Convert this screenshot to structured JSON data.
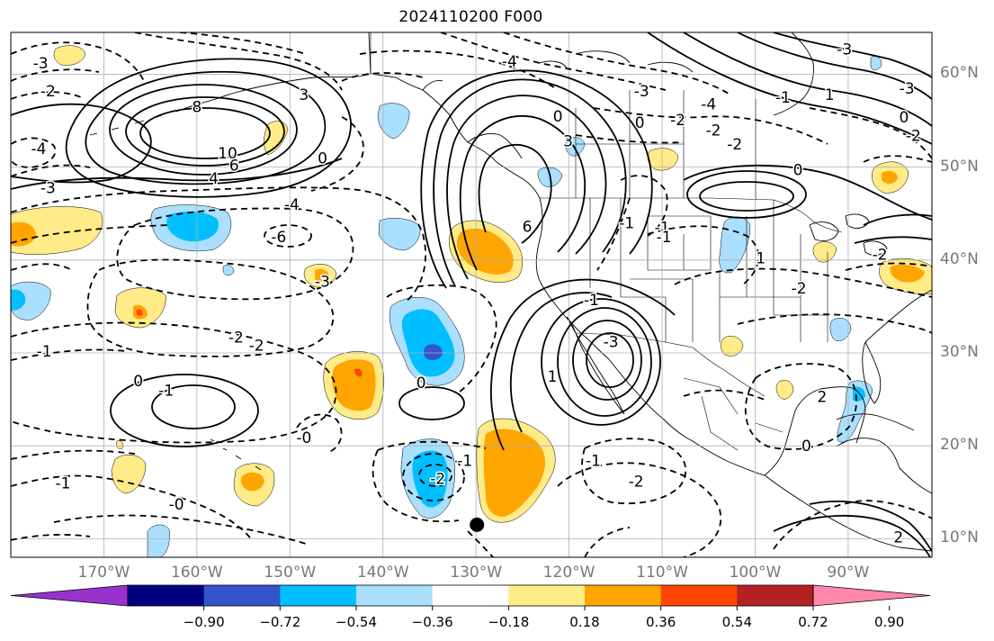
{
  "title": "2024110200 F000",
  "colors": {
    "background": "#ffffff",
    "grid": "#b0b0b0",
    "contour": "#000000",
    "axis_label": "#777777",
    "land_outline": "#000000"
  },
  "colorbar": {
    "ticks": [
      "−0.90",
      "−0.72",
      "−0.54",
      "−0.36",
      "−0.18",
      "0.18",
      "0.36",
      "0.54",
      "0.72",
      "0.90"
    ],
    "tick_values": [
      -0.9,
      -0.72,
      -0.54,
      -0.36,
      -0.18,
      0.18,
      0.36,
      0.54,
      0.72,
      0.9
    ],
    "bin_colors": [
      "#9932cc",
      "#000080",
      "#3355cc",
      "#00bfff",
      "#aadfff",
      "#ffffff",
      "#ffeb88",
      "#ffa500",
      "#ff4500",
      "#b22222",
      "#ff88aa"
    ],
    "extend": "both"
  },
  "axes": {
    "lat_labels": [
      "60°N",
      "50°N",
      "40°N",
      "30°N",
      "20°N",
      "10°N"
    ],
    "lat_values": [
      60,
      50,
      40,
      30,
      20,
      10
    ],
    "lon_labels": [
      "170°W",
      "160°W",
      "150°W",
      "140°W",
      "130°W",
      "120°W",
      "110°W",
      "100°W",
      "90°W"
    ],
    "lon_values": [
      -170,
      -160,
      -150,
      -140,
      -130,
      -120,
      -110,
      -100,
      -90
    ],
    "lon_range": [
      -180,
      -81
    ],
    "lat_range": [
      8,
      64.5
    ]
  },
  "map_data": {
    "projection": "equirectangular",
    "grid": true,
    "contour_labels": [
      {
        "text": "-3",
        "lon": -176.8,
        "lat": 61.2
      },
      {
        "text": "-2",
        "lon": -176,
        "lat": 58.2
      },
      {
        "text": "-4",
        "lon": -177,
        "lat": 52
      },
      {
        "text": "-3",
        "lon": -176,
        "lat": 47.8
      },
      {
        "text": "8",
        "lon": -160,
        "lat": 56.5
      },
      {
        "text": "10",
        "lon": -156.7,
        "lat": 51.5
      },
      {
        "text": "4",
        "lon": -158.2,
        "lat": 48.8
      },
      {
        "text": "6",
        "lon": -156,
        "lat": 50.2
      },
      {
        "text": "3",
        "lon": -148.5,
        "lat": 57.8
      },
      {
        "text": "0",
        "lon": -146.5,
        "lat": 51
      },
      {
        "text": "-4",
        "lon": -149.8,
        "lat": 46
      },
      {
        "text": "-6",
        "lon": -151.2,
        "lat": 42.5
      },
      {
        "text": "-3",
        "lon": -146.5,
        "lat": 37.7
      },
      {
        "text": "-2",
        "lon": -155.8,
        "lat": 31.7
      },
      {
        "text": "-2",
        "lon": -153.6,
        "lat": 30.8
      },
      {
        "text": "-1",
        "lon": -176.4,
        "lat": 30.2
      },
      {
        "text": "0",
        "lon": -166.3,
        "lat": 27
      },
      {
        "text": "-1",
        "lon": -163.3,
        "lat": 26
      },
      {
        "text": "0",
        "lon": -135.9,
        "lat": 26.8
      },
      {
        "text": "-0",
        "lon": -148.5,
        "lat": 20.9
      },
      {
        "text": "-1",
        "lon": -174.4,
        "lat": 16
      },
      {
        "text": "-0",
        "lon": -162.2,
        "lat": 13.7
      },
      {
        "text": "-1",
        "lon": -131.2,
        "lat": 18.4
      },
      {
        "text": "-2",
        "lon": -134.1,
        "lat": 16.5
      },
      {
        "text": "-1",
        "lon": -117.4,
        "lat": 18.4
      },
      {
        "text": "-2",
        "lon": -112.8,
        "lat": 16.2
      },
      {
        "text": "-4",
        "lon": -126.4,
        "lat": 61.4
      },
      {
        "text": "0",
        "lon": -121.2,
        "lat": 55.5
      },
      {
        "text": "6",
        "lon": -124.5,
        "lat": 43.6
      },
      {
        "text": "3",
        "lon": -120.1,
        "lat": 52.8
      },
      {
        "text": "-3",
        "lon": -112.2,
        "lat": 58.2
      },
      {
        "text": "0",
        "lon": -112.4,
        "lat": 54.8
      },
      {
        "text": "-2",
        "lon": -108.3,
        "lat": 55.1
      },
      {
        "text": "-1",
        "lon": -113.8,
        "lat": 44
      },
      {
        "text": "-1",
        "lon": -110,
        "lat": 43.5
      },
      {
        "text": "-1",
        "lon": -109.8,
        "lat": 42.5
      },
      {
        "text": "1",
        "lon": -99.4,
        "lat": 40.2
      },
      {
        "text": "-2",
        "lon": -95.3,
        "lat": 37
      },
      {
        "text": "1",
        "lon": -121.8,
        "lat": 27.5
      },
      {
        "text": "-1",
        "lon": -117.6,
        "lat": 35.7
      },
      {
        "text": "-3",
        "lon": -115.5,
        "lat": 31.2
      },
      {
        "text": "-4",
        "lon": -105,
        "lat": 56.8
      },
      {
        "text": "-2",
        "lon": -104.5,
        "lat": 54
      },
      {
        "text": "-2",
        "lon": -102.2,
        "lat": 52.5
      },
      {
        "text": "0",
        "lon": -95.4,
        "lat": 49.7
      },
      {
        "text": "-1",
        "lon": -97,
        "lat": 57.5
      },
      {
        "text": "1",
        "lon": -92,
        "lat": 57.8
      },
      {
        "text": "-3",
        "lon": -90.4,
        "lat": 62.7
      },
      {
        "text": "-3",
        "lon": -83.7,
        "lat": 58.5
      },
      {
        "text": "0",
        "lon": -84,
        "lat": 55.4
      },
      {
        "text": "-2",
        "lon": -83,
        "lat": 53.4
      },
      {
        "text": "0",
        "lon": -94.5,
        "lat": 20
      },
      {
        "text": "2",
        "lon": -92.8,
        "lat": 25.3
      },
      {
        "text": "2",
        "lon": -84.6,
        "lat": 10.2
      },
      {
        "text": "-2",
        "lon": -86.6,
        "lat": 40.6
      }
    ],
    "marker": {
      "type": "dot",
      "lon": -129.9,
      "lat": 11.5
    }
  }
}
